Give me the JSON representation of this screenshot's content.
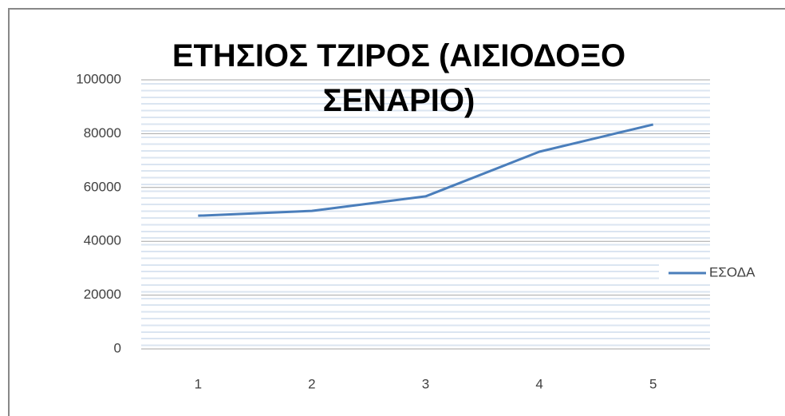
{
  "chart_data": {
    "type": "line",
    "title": "ΕΤΗΣΙΟΣ ΤΖΙΡΟΣ (ΑΙΣΙΟΔΟΞΟ ΣΕΝΑΡΙΟ)",
    "categories": [
      1,
      2,
      3,
      4,
      5
    ],
    "series": [
      {
        "name": "ΕΣΟΔΑ",
        "color": "#4a7ebb",
        "values": [
          49500,
          51300,
          56700,
          73300,
          83400
        ]
      }
    ],
    "ylim": [
      0,
      100000
    ],
    "yticks": [
      0,
      20000,
      40000,
      60000,
      80000,
      100000
    ],
    "grid": true,
    "legend": "right"
  }
}
